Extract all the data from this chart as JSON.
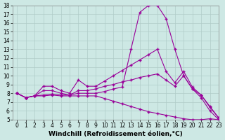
{
  "xlabel": "Windchill (Refroidissement éolien,°C)",
  "ylabel": "",
  "background_color": "#cde8e4",
  "line_color": "#990099",
  "x": [
    0,
    1,
    2,
    3,
    4,
    5,
    6,
    7,
    8,
    9,
    10,
    11,
    12,
    13,
    14,
    15,
    16,
    17,
    18,
    19,
    20,
    21,
    22,
    23
  ],
  "lines": [
    [
      8.0,
      7.5,
      7.7,
      8.8,
      8.8,
      8.3,
      8.0,
      9.5,
      8.8,
      8.8,
      9.4,
      10.0,
      10.6,
      11.2,
      11.8,
      12.4,
      13.0,
      10.5,
      9.2,
      10.5,
      8.7,
      7.8,
      6.4,
      5.2
    ],
    [
      8.0,
      7.5,
      7.7,
      8.3,
      8.3,
      8.0,
      7.8,
      8.3,
      8.3,
      8.5,
      8.8,
      9.0,
      9.3,
      9.5,
      9.8,
      10.0,
      10.2,
      9.5,
      8.8,
      10.0,
      8.5,
      7.5,
      6.0,
      5.0
    ],
    [
      8.0,
      7.5,
      7.7,
      7.8,
      7.9,
      7.8,
      7.8,
      8.0,
      8.0,
      8.0,
      8.2,
      8.5,
      8.7,
      13.0,
      17.2,
      18.0,
      18.0,
      16.5,
      13.0,
      10.0,
      8.5,
      7.8,
      6.5,
      5.2
    ],
    [
      8.0,
      7.5,
      7.7,
      7.7,
      7.8,
      7.7,
      7.7,
      7.7,
      7.7,
      7.7,
      7.4,
      7.1,
      6.8,
      6.5,
      6.2,
      5.9,
      5.7,
      5.5,
      5.3,
      5.1,
      5.0,
      5.0,
      5.1,
      5.0
    ]
  ],
  "ylim": [
    5,
    18
  ],
  "xlim": [
    -0.5,
    23
  ],
  "yticks": [
    5,
    6,
    7,
    8,
    9,
    10,
    11,
    12,
    13,
    14,
    15,
    16,
    17,
    18
  ],
  "xticks": [
    0,
    1,
    2,
    3,
    4,
    5,
    6,
    7,
    8,
    9,
    10,
    11,
    12,
    13,
    14,
    15,
    16,
    17,
    18,
    19,
    20,
    21,
    22,
    23
  ],
  "grid_color": "#b0ccc8",
  "tick_fontsize": 5.5,
  "label_fontsize": 6.5
}
